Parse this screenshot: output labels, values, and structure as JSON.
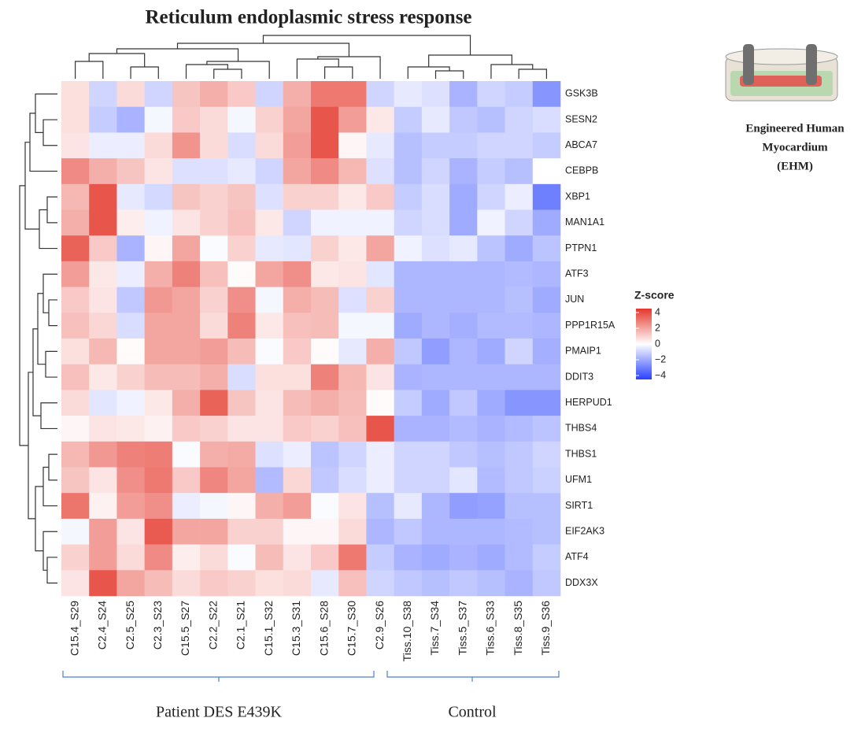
{
  "chart_data": {
    "type": "heatmap",
    "title": "Reticulum endoplasmic stress response",
    "rows": [
      "GSK3B",
      "SESN2",
      "ABCA7",
      "CEBPB",
      "XBP1",
      "MAN1A1",
      "PTPN1",
      "ATF3",
      "JUN",
      "PPP1R15A",
      "PMAIP1",
      "DDIT3",
      "HERPUD1",
      "THBS4",
      "THBS1",
      "UFM1",
      "SIRT1",
      "EIF2AK3",
      "ATF4",
      "DDX3X"
    ],
    "columns": [
      "C15.4_S29",
      "C2.4_S24",
      "C2.5_S25",
      "C2.3_S23",
      "C15.5_S27",
      "C2.2_S22",
      "C2.1_S21",
      "C15.1_S32",
      "C15.3_S31",
      "C15.6_S28",
      "C15.7_S30",
      "C2.9_S26",
      "Tiss.10_S38",
      "Tiss.7_S34",
      "Tiss.5_S37",
      "Tiss.6_S33",
      "Tiss.8_S35",
      "Tiss.9_S36"
    ],
    "values": [
      [
        0.7,
        -1,
        0.8,
        -1,
        1.3,
        1.8,
        1.2,
        -1,
        1.8,
        3,
        3,
        -1,
        -0.5,
        -0.7,
        -1.8,
        -1,
        -1.2,
        -2.5
      ],
      [
        0.7,
        -1.2,
        -1.8,
        -0.2,
        1.2,
        0.8,
        -0.2,
        1,
        2,
        3.8,
        2.2,
        0.5,
        -1.2,
        -0.5,
        -1.3,
        -1.5,
        -1,
        -0.8
      ],
      [
        0.6,
        -0.4,
        -0.4,
        0.8,
        2.4,
        0.8,
        -0.8,
        0.8,
        2.2,
        3.8,
        0.2,
        -0.5,
        -1.5,
        -1.2,
        -1.2,
        -1,
        -1,
        -1.2
      ],
      [
        2.6,
        1.8,
        1.3,
        0.6,
        -0.7,
        -0.7,
        -0.5,
        -1,
        2,
        2.6,
        1.6,
        -0.7,
        -1.5,
        -1,
        -1.8,
        -1.2,
        -1.5,
        0
      ],
      [
        1.6,
        3.8,
        -0.5,
        -0.9,
        1.3,
        1,
        1.3,
        -0.7,
        1,
        1,
        0.5,
        1.2,
        -1.2,
        -0.8,
        -2,
        -1,
        -0.4,
        -3
      ],
      [
        1.8,
        3.8,
        0.4,
        -0.3,
        0.6,
        1,
        1.4,
        0.5,
        -1,
        -0.3,
        -0.3,
        -0.3,
        -1,
        -0.8,
        -2,
        -0.3,
        -1,
        -2
      ],
      [
        3.5,
        1.2,
        -1.8,
        0.2,
        2,
        -0.1,
        1,
        -0.5,
        -0.6,
        1,
        0.5,
        2,
        -0.3,
        -0.7,
        -0.5,
        -1.4,
        -2,
        -1.4
      ],
      [
        2.2,
        0.5,
        -0.4,
        1.8,
        2.8,
        1.4,
        0.1,
        2,
        2.5,
        0.5,
        0.6,
        -0.6,
        -1.7,
        -1.7,
        -1.7,
        -1.7,
        -1.6,
        -1.7
      ],
      [
        1.2,
        0.6,
        -1.3,
        2.3,
        2,
        1,
        2.5,
        -0.2,
        1.8,
        1.5,
        -0.7,
        1,
        -1.7,
        -1.7,
        -1.7,
        -1.7,
        -1.5,
        -2
      ],
      [
        1.4,
        0.9,
        -0.8,
        2,
        2,
        0.8,
        2.8,
        0.5,
        1.4,
        1.5,
        -0.2,
        -0.2,
        -2,
        -1.7,
        -1.9,
        -1.6,
        -1.6,
        -1.7
      ],
      [
        0.7,
        1.6,
        0.1,
        2,
        2,
        2.2,
        1.5,
        -0.1,
        1.2,
        0.1,
        -0.5,
        1.8,
        -1.3,
        -2.3,
        -1.7,
        -2,
        -1,
        -1.9
      ],
      [
        1.4,
        0.5,
        1,
        1.5,
        1.5,
        1.8,
        -0.8,
        0.7,
        0.7,
        2.8,
        1.6,
        0.6,
        -1.8,
        -1.7,
        -1.7,
        -1.7,
        -1.7,
        -1.7
      ],
      [
        0.8,
        -0.6,
        -0.3,
        0.5,
        1.8,
        3.5,
        1.3,
        0.6,
        1.5,
        1.8,
        1.5,
        0.1,
        -1.2,
        -2,
        -1.3,
        -2,
        -2.5,
        -2.5
      ],
      [
        0.2,
        0.6,
        0.5,
        0.3,
        1.2,
        1,
        0.6,
        0.6,
        1.2,
        1,
        1.4,
        3.8,
        -1.8,
        -1.8,
        -1.6,
        -1.8,
        -1.6,
        -1.4
      ],
      [
        1.6,
        2.3,
        2.8,
        2.9,
        -0.1,
        1.8,
        1.9,
        -0.7,
        -0.4,
        -1.4,
        -1,
        -0.4,
        -1,
        -1,
        -1.3,
        -1.5,
        -1.3,
        -1
      ],
      [
        1.3,
        0.6,
        2.5,
        3,
        1.2,
        2.7,
        2,
        -1.6,
        0.9,
        -1.3,
        -0.8,
        -0.4,
        -1,
        -1,
        -0.6,
        -1.6,
        -1.3,
        -1.1
      ],
      [
        3.1,
        0.3,
        2.2,
        2.5,
        -0.4,
        -0.2,
        0.2,
        1.8,
        2.2,
        -0.1,
        0.6,
        -1.5,
        -0.5,
        -1.7,
        -2.3,
        -2.2,
        -1.5,
        -1.5
      ],
      [
        -0.2,
        2.2,
        0.6,
        3.7,
        2,
        2,
        1,
        1,
        0.2,
        0.2,
        0.8,
        -1.7,
        -1.3,
        -1.7,
        -1.7,
        -1.7,
        -1.6,
        -1.5
      ],
      [
        1,
        2.2,
        0.8,
        2.6,
        0.4,
        0.8,
        -0.1,
        1.5,
        0.6,
        1.2,
        3,
        -1.2,
        -1.8,
        -2,
        -1.8,
        -2,
        -1.6,
        -1.2
      ],
      [
        0.6,
        3.8,
        2,
        1.5,
        0.8,
        1.2,
        1,
        0.7,
        0.8,
        -0.5,
        1.4,
        -1,
        -1.3,
        -1.5,
        -1.3,
        -1.5,
        -1.8,
        -1.3
      ]
    ],
    "colorbar_title": "Z-score",
    "zlim": [
      -4.5,
      4.5
    ],
    "zticks": [
      4,
      2,
      0,
      {
        "value": -2,
        "label": "−2"
      },
      {
        "value": -4,
        "label": "−4"
      }
    ],
    "colors": {
      "low": "#2741ff",
      "mid": "#ffffff",
      "high": "#e4362a"
    },
    "column_groups": [
      "Patient DES E439K",
      "Control"
    ],
    "inset_label": [
      "Engineered Human",
      "Myocardium",
      "(EHM)"
    ]
  }
}
